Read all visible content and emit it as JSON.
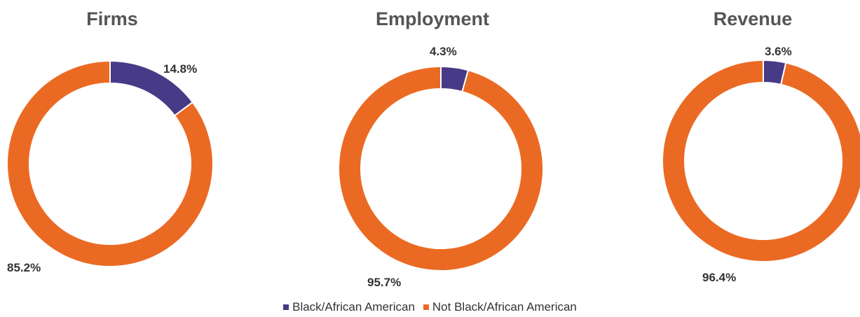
{
  "chart_data": [
    {
      "type": "pie",
      "title": "Firms",
      "categories": [
        "Black/African American",
        "Not Black/African American"
      ],
      "values": [
        14.8,
        85.2
      ],
      "labels": [
        "14.8%",
        "85.2%"
      ],
      "colors": [
        "#473a86",
        "#eb6a23"
      ]
    },
    {
      "type": "pie",
      "title": "Employment",
      "categories": [
        "Black/African American",
        "Not Black/African American"
      ],
      "values": [
        4.3,
        95.7
      ],
      "labels": [
        "4.3%",
        "95.7%"
      ],
      "colors": [
        "#473a86",
        "#eb6a23"
      ]
    },
    {
      "type": "pie",
      "title": "Revenue",
      "categories": [
        "Black/African American",
        "Not Black/African American"
      ],
      "values": [
        3.6,
        96.4
      ],
      "labels": [
        "3.6%",
        "96.4%"
      ],
      "colors": [
        "#473a86",
        "#eb6a23"
      ]
    }
  ],
  "legend": {
    "placement": "bottom",
    "items": [
      {
        "label": "Black/African American",
        "color": "#473a86"
      },
      {
        "label": "Not Black/African American",
        "color": "#eb6a23"
      }
    ]
  }
}
